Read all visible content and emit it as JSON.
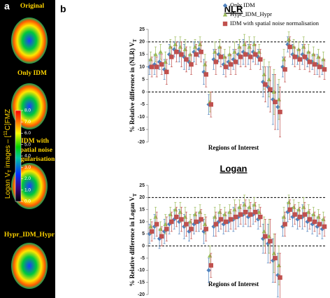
{
  "panel_labels": [
    "a",
    "b"
  ],
  "images": {
    "labels": [
      "Original",
      "Only IDM",
      "IDM with",
      "spatial noise",
      "regularisation",
      "Hypr_IDM_Hypr"
    ],
    "colorbar_label": [
      "Logan V",
      "T",
      " images – [",
      "11",
      "C]FMZ"
    ],
    "colorbar_lim": [
      0,
      8
    ],
    "colorbar_ticks": [
      {
        "value": 0,
        "label": "0.0"
      },
      {
        "value": 1,
        "label": "1.0"
      },
      {
        "value": 2,
        "label": "2.0"
      },
      {
        "value": 3,
        "label": "3.0"
      },
      {
        "value": 4,
        "label": "4.0"
      },
      {
        "value": 5,
        "label": "5.0"
      },
      {
        "value": 6,
        "label": "6.0"
      },
      {
        "value": 7,
        "label": "7.0"
      },
      {
        "value": 8,
        "label": "8.0"
      }
    ]
  },
  "chart_data": [
    {
      "type": "errorbar",
      "title": "NLR",
      "x_label": "Regions of Interest",
      "y_label": [
        "% Relative difference in (NLR) V",
        "T"
      ],
      "categories": [
        null,
        null,
        null,
        null,
        null,
        null,
        null,
        null,
        null,
        null,
        null,
        null,
        null,
        null,
        null,
        null,
        null,
        null,
        null,
        null,
        null,
        null,
        null,
        null,
        null,
        null,
        null,
        null,
        null,
        null,
        null,
        null,
        null,
        null,
        null,
        null
      ],
      "ylim": [
        -20,
        25
      ],
      "yticks": [
        -20,
        -15,
        -10,
        -5,
        0,
        5,
        10,
        15,
        20,
        25
      ],
      "reference_lines": [
        0,
        20
      ],
      "legend": "upper right",
      "series": [
        {
          "name": "Only IDM",
          "color": "#4f81bd",
          "marker": "diamond",
          "values": [
            10,
            11,
            12,
            9,
            15,
            17,
            16,
            14,
            12,
            16,
            17,
            8,
            -5,
            13,
            15,
            11,
            12,
            13,
            15,
            16,
            15,
            16,
            14,
            4,
            2,
            -3,
            -6,
            10,
            19,
            15,
            14,
            15,
            13,
            12,
            11,
            10
          ],
          "errors": [
            3,
            4,
            3,
            4,
            4,
            3,
            4,
            5,
            3,
            4,
            3,
            5,
            4,
            4,
            3,
            4,
            3,
            4,
            4,
            5,
            4,
            4,
            3,
            6,
            8,
            10,
            9,
            4,
            3,
            4,
            3,
            4,
            3,
            3,
            4,
            3
          ]
        },
        {
          "name": "Hypr_IDM_Hypr",
          "color": "#9bbb59",
          "marker": "triangle",
          "values": [
            13,
            15,
            16,
            12,
            18,
            19,
            18,
            17,
            15,
            18,
            19,
            11,
            -4,
            16,
            18,
            14,
            15,
            16,
            18,
            19,
            18,
            19,
            16,
            7,
            5,
            0,
            -3,
            13,
            21,
            18,
            17,
            18,
            16,
            15,
            14,
            13
          ],
          "errors": [
            3,
            3,
            3,
            4,
            3,
            3,
            4,
            4,
            3,
            3,
            3,
            4,
            4,
            4,
            3,
            3,
            3,
            4,
            3,
            4,
            4,
            3,
            3,
            6,
            7,
            9,
            8,
            4,
            3,
            3,
            3,
            4,
            3,
            3,
            3,
            3
          ]
        },
        {
          "name": "IDM with spatial noise normalisation",
          "color": "#c0504d",
          "marker": "square",
          "values": [
            10,
            10,
            11,
            8,
            14,
            16,
            15,
            13,
            11,
            15,
            16,
            7,
            -5,
            12,
            14,
            10,
            11,
            12,
            14,
            15,
            14,
            15,
            13,
            3,
            1,
            -4,
            -8,
            9,
            18,
            14,
            13,
            14,
            12,
            11,
            10,
            9
          ],
          "errors": [
            4,
            4,
            4,
            5,
            4,
            4,
            5,
            5,
            4,
            4,
            4,
            5,
            5,
            5,
            4,
            4,
            4,
            5,
            4,
            5,
            5,
            4,
            4,
            7,
            9,
            11,
            10,
            5,
            4,
            4,
            4,
            5,
            4,
            4,
            4,
            4
          ]
        }
      ]
    },
    {
      "type": "errorbar",
      "title": "Logan",
      "x_label": "Regions of Interest",
      "y_label": [
        "% Relative difference in Logan V",
        "T"
      ],
      "categories": [
        null,
        null,
        null,
        null,
        null,
        null,
        null,
        null,
        null,
        null,
        null,
        null,
        null,
        null,
        null,
        null,
        null,
        null,
        null,
        null,
        null,
        null,
        null,
        null,
        null,
        null,
        null,
        null,
        null,
        null,
        null,
        null,
        null,
        null,
        null,
        null
      ],
      "ylim": [
        -20,
        25
      ],
      "yticks": [
        -20,
        -15,
        -10,
        -5,
        0,
        5,
        10,
        15,
        20,
        25
      ],
      "reference_lines": [
        0,
        20
      ],
      "legend": "none",
      "series": [
        {
          "color": "#4f81bd",
          "marker": "diamond",
          "values": [
            5,
            8,
            3,
            6,
            9,
            11,
            10,
            8,
            6,
            9,
            10,
            6,
            -10,
            8,
            10,
            9,
            10,
            11,
            12,
            13,
            12,
            13,
            11,
            3,
            1,
            -6,
            -12,
            8,
            14,
            12,
            11,
            12,
            10,
            9,
            8,
            7
          ],
          "errors": [
            4,
            5,
            4,
            5,
            4,
            4,
            5,
            5,
            4,
            4,
            4,
            5,
            5,
            4,
            4,
            4,
            4,
            5,
            4,
            5,
            4,
            4,
            4,
            6,
            8,
            9,
            9,
            4,
            4,
            4,
            4,
            5,
            4,
            4,
            4,
            4
          ]
        },
        {
          "color": "#9bbb59",
          "marker": "triangle",
          "values": [
            8,
            12,
            7,
            9,
            13,
            15,
            14,
            12,
            10,
            13,
            14,
            9,
            -4,
            12,
            14,
            13,
            14,
            15,
            16,
            17,
            16,
            17,
            14,
            6,
            4,
            -3,
            -8,
            12,
            18,
            16,
            15,
            16,
            14,
            13,
            12,
            11
          ],
          "errors": [
            3,
            4,
            3,
            4,
            3,
            3,
            4,
            4,
            3,
            3,
            3,
            4,
            4,
            4,
            3,
            3,
            3,
            4,
            3,
            4,
            3,
            3,
            3,
            6,
            7,
            8,
            8,
            4,
            3,
            3,
            3,
            4,
            3,
            3,
            3,
            3
          ]
        },
        {
          "color": "#c0504d",
          "marker": "square",
          "values": [
            6,
            9,
            4,
            7,
            10,
            12,
            11,
            9,
            7,
            10,
            11,
            7,
            -8,
            9,
            11,
            10,
            11,
            12,
            13,
            14,
            13,
            14,
            12,
            4,
            2,
            -5,
            -13,
            9,
            15,
            13,
            12,
            13,
            11,
            10,
            9,
            8
          ],
          "errors": [
            4,
            5,
            4,
            5,
            4,
            4,
            5,
            5,
            4,
            4,
            4,
            5,
            5,
            5,
            4,
            4,
            4,
            5,
            4,
            5,
            5,
            4,
            4,
            7,
            9,
            10,
            10,
            5,
            4,
            4,
            4,
            5,
            4,
            4,
            4,
            4
          ]
        }
      ]
    }
  ]
}
